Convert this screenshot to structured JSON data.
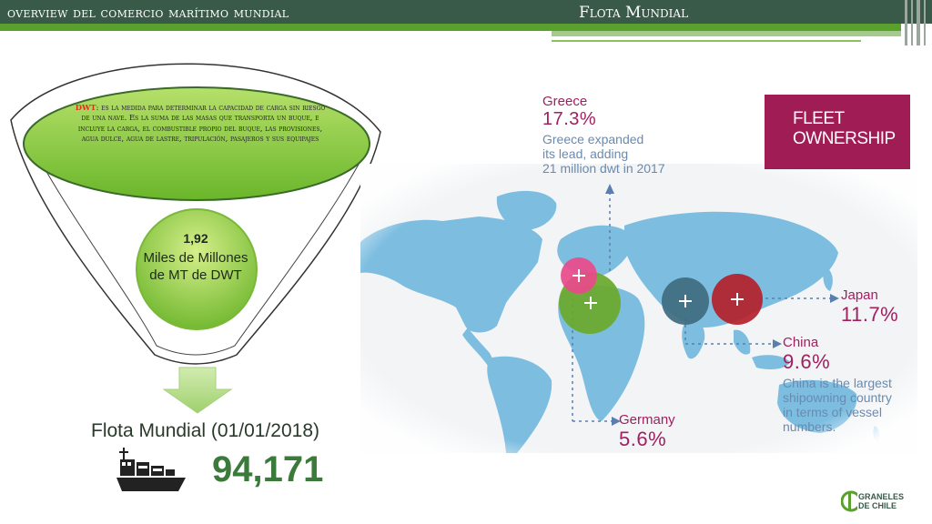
{
  "header": {
    "title_left": "overview del comercio marítimo mundial",
    "title_right": "Flota Mundial"
  },
  "funnel": {
    "dwt_key": "DWT",
    "dwt_definition": ": es la medida para determinar la capacidad de carga sin riesgo de una nave. Es la suma de las masas que transporta un buque, e incluye la carga, el combustible propio del buque, las provisiones, agua dulce, agua de lastre, tripulación, pasajeros y sus equipajes",
    "circle_value": "1,92",
    "circle_label": "Miles de Millones de MT de DWT"
  },
  "flota": {
    "label": "Flota Mundial (01/01/2018)",
    "value": "94,171"
  },
  "map": {
    "fleet_box": "FLEET\nOWNERSHIP",
    "greece": {
      "name": "Greece",
      "pct": "17.3%",
      "desc": "Greece expanded\nits lead, adding\n21 million dwt in 2017"
    },
    "japan": {
      "name": "Japan",
      "pct": "11.7%"
    },
    "china": {
      "name": "China",
      "pct": "9.6%",
      "desc": "China is the largest\nshipowning country\nin terms of vessel\nnumbers."
    },
    "germany": {
      "name": "Germany",
      "pct": "5.6%"
    },
    "colors": {
      "greece": "#e94a8a",
      "germany": "#6aa82a",
      "china": "#3f6b7f",
      "japan": "#b31f2a",
      "land": "#7cbde0",
      "label": "#a02060"
    }
  },
  "logo": {
    "line1": "GRANELES",
    "line2": "DE CHILE"
  }
}
